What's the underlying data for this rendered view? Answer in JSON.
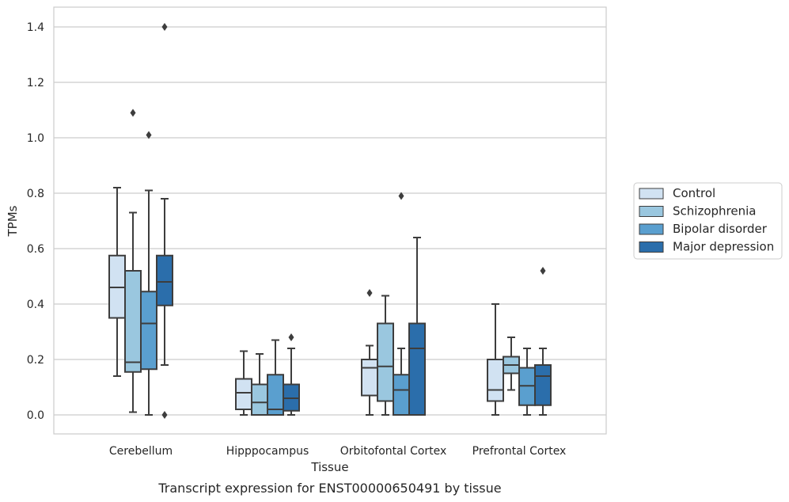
{
  "chart_data": {
    "type": "box",
    "xlabel": "Tissue",
    "ylabel": "TPMs",
    "caption": "Transcript expression for ENST00000650491 by tissue",
    "ylim": [
      -0.07,
      1.47
    ],
    "yticks": [
      "0.0",
      "0.2",
      "0.4",
      "0.6",
      "0.8",
      "1.0",
      "1.2",
      "1.4"
    ],
    "grid": "horizontal",
    "legend_position": "right",
    "categories": [
      "Cerebellum",
      "Hipppocampus",
      "Orbitofontal Cortex",
      "Prefrontal Cortex"
    ],
    "series": [
      {
        "name": "Control",
        "color": "#d1e2f2",
        "boxes": [
          {
            "whisker_low": 0.14,
            "q1": 0.35,
            "median": 0.46,
            "q3": 0.575,
            "whisker_high": 0.82,
            "outliers": []
          },
          {
            "whisker_low": 0.0,
            "q1": 0.02,
            "median": 0.08,
            "q3": 0.13,
            "whisker_high": 0.23,
            "outliers": []
          },
          {
            "whisker_low": 0.0,
            "q1": 0.07,
            "median": 0.17,
            "q3": 0.2,
            "whisker_high": 0.25,
            "outliers": [
              0.44
            ]
          },
          {
            "whisker_low": 0.0,
            "q1": 0.05,
            "median": 0.09,
            "q3": 0.2,
            "whisker_high": 0.4,
            "outliers": []
          }
        ]
      },
      {
        "name": "Schizophrenia",
        "color": "#9ac7df",
        "boxes": [
          {
            "whisker_low": 0.01,
            "q1": 0.155,
            "median": 0.19,
            "q3": 0.52,
            "whisker_high": 0.73,
            "outliers": [
              1.09
            ]
          },
          {
            "whisker_low": 0.0,
            "q1": 0.0,
            "median": 0.045,
            "q3": 0.11,
            "whisker_high": 0.22,
            "outliers": []
          },
          {
            "whisker_low": 0.0,
            "q1": 0.05,
            "median": 0.175,
            "q3": 0.33,
            "whisker_high": 0.43,
            "outliers": []
          },
          {
            "whisker_low": 0.09,
            "q1": 0.15,
            "median": 0.18,
            "q3": 0.21,
            "whisker_high": 0.28,
            "outliers": []
          }
        ]
      },
      {
        "name": "Bipolar disorder",
        "color": "#5a9fcf",
        "boxes": [
          {
            "whisker_low": 0.0,
            "q1": 0.165,
            "median": 0.33,
            "q3": 0.445,
            "whisker_high": 0.81,
            "outliers": [
              1.01
            ]
          },
          {
            "whisker_low": 0.0,
            "q1": 0.0,
            "median": 0.02,
            "q3": 0.145,
            "whisker_high": 0.27,
            "outliers": []
          },
          {
            "whisker_low": 0.0,
            "q1": 0.0,
            "median": 0.09,
            "q3": 0.145,
            "whisker_high": 0.24,
            "outliers": [
              0.79
            ]
          },
          {
            "whisker_low": 0.0,
            "q1": 0.035,
            "median": 0.105,
            "q3": 0.17,
            "whisker_high": 0.24,
            "outliers": []
          }
        ]
      },
      {
        "name": "Major depression",
        "color": "#2b6eab",
        "boxes": [
          {
            "whisker_low": 0.18,
            "q1": 0.395,
            "median": 0.48,
            "q3": 0.575,
            "whisker_high": 0.78,
            "outliers": [
              1.4,
              0.0
            ]
          },
          {
            "whisker_low": 0.0,
            "q1": 0.015,
            "median": 0.06,
            "q3": 0.11,
            "whisker_high": 0.24,
            "outliers": [
              0.28
            ]
          },
          {
            "whisker_low": 0.0,
            "q1": 0.0,
            "median": 0.24,
            "q3": 0.33,
            "whisker_high": 0.64,
            "outliers": []
          },
          {
            "whisker_low": 0.0,
            "q1": 0.035,
            "median": 0.14,
            "q3": 0.18,
            "whisker_high": 0.24,
            "outliers": [
              0.52
            ]
          }
        ]
      }
    ]
  }
}
